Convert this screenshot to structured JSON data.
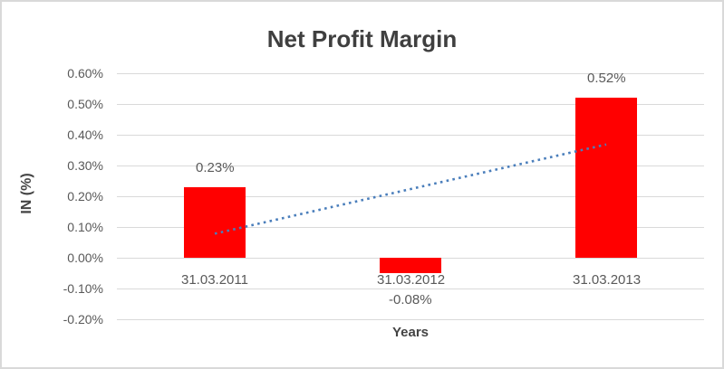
{
  "chart_data": {
    "type": "bar",
    "title": "Net Profit Margin",
    "xlabel": "Years",
    "ylabel": "IN (%)",
    "categories": [
      "31.03.2011",
      "31.03.2012",
      "31.03.2013"
    ],
    "values": [
      0.23,
      -0.08,
      0.52
    ],
    "data_labels": [
      "0.23%",
      "-0.08%",
      "0.52%"
    ],
    "ytick_labels": [
      "0.60%",
      "0.50%",
      "0.40%",
      "0.30%",
      "0.20%",
      "0.10%",
      "0.00%",
      "-0.10%",
      "-0.20%"
    ],
    "ylim": [
      -0.2,
      0.6
    ],
    "ytick_step": 0.1,
    "grid": true,
    "legend": false,
    "bar_color": "#ff0000",
    "gridline_color": "#d9d9d9",
    "trendline": {
      "type": "linear",
      "style": "dotted",
      "color": "#4a7ebb",
      "start_value": 0.078,
      "end_value": 0.368
    }
  }
}
